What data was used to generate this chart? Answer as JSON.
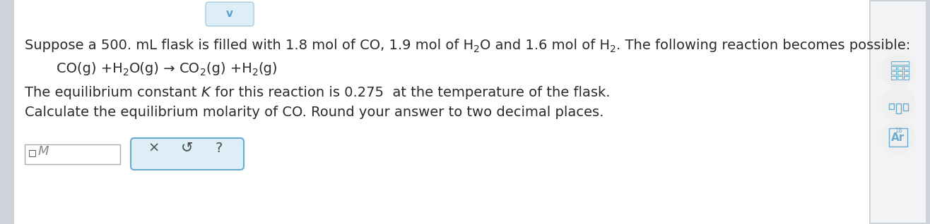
{
  "bg_color": "#f2f3f4",
  "main_bg": "#ffffff",
  "left_strip_color": "#cdd3d8",
  "right_panel_color": "#cdd3d8",
  "right_inner_color": "#f2f3f4",
  "chevron_color": "#5b9ec9",
  "chevron_bg": "#ddeef7",
  "chevron_border": "#a8cce0",
  "text_color": "#2a2a2a",
  "reaction_color": "#2a2a2a",
  "input_border": "#aaaaaa",
  "button_border": "#6aaccf",
  "button_bg": "#ddeef7",
  "button_text_color": "#4a4a4a",
  "icon_color": "#6aaccf",
  "icon_circle_bg": "#efefef",
  "font_size": 14,
  "font_size_small": 10,
  "line1a": "Suppose a 500. mL flask is filled with 1.8 mol of CO, 1.9 mol of H",
  "line1b": "2",
  "line1c": "O and 1.6 mol of H",
  "line1d": "2",
  "line1e": ". The following reaction becomes possible:",
  "rxn_a": "CO(g) +H",
  "rxn_b": "2",
  "rxn_c": "O(g)",
  "rxn_arrow": "→",
  "rxn_d": "CO",
  "rxn_e": "2",
  "rxn_f": "(g) +H",
  "rxn_g": "2",
  "rxn_h": "(g)",
  "line3a": "The equilibrium constant ",
  "line3b": "K",
  "line3c": " for this reaction is 0.275  at the temperature of the flask.",
  "line4": "Calculate the equilibrium molarity of CO. Round your answer to two decimal places.",
  "input_placeholder": "M",
  "btn_x": "×",
  "btn_undo": "↺",
  "btn_q": "?"
}
